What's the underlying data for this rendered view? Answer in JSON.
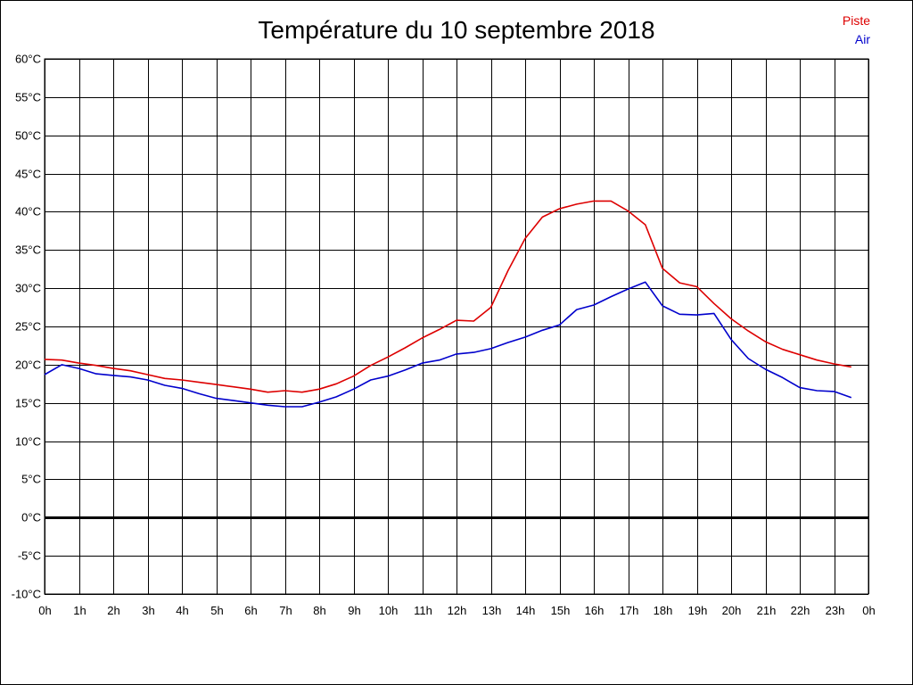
{
  "chart_data": {
    "type": "line",
    "title": "Température du 10 septembre 2018",
    "xlabel": "",
    "ylabel": "",
    "ylim": [
      -10,
      60
    ],
    "xlim": [
      0,
      24
    ],
    "grid": true,
    "legend_position": "top-right",
    "y_ticks": [
      "60°C",
      "55°C",
      "50°C",
      "45°C",
      "40°C",
      "35°C",
      "30°C",
      "25°C",
      "20°C",
      "15°C",
      "10°C",
      "5°C",
      "0°C",
      "-5°C",
      "-10°C"
    ],
    "x_ticks": [
      "0h",
      "1h",
      "2h",
      "3h",
      "4h",
      "5h",
      "6h",
      "7h",
      "8h",
      "9h",
      "10h",
      "11h",
      "12h",
      "13h",
      "14h",
      "15h",
      "16h",
      "17h",
      "18h",
      "19h",
      "20h",
      "21h",
      "22h",
      "23h",
      "0h"
    ],
    "x": [
      0,
      0.5,
      1,
      1.5,
      2,
      2.5,
      3,
      3.5,
      4,
      4.5,
      5,
      5.5,
      6,
      6.5,
      7,
      7.5,
      8,
      8.5,
      9,
      9.5,
      10,
      10.5,
      11,
      11.5,
      12,
      12.5,
      13,
      13.5,
      14,
      14.5,
      15,
      15.5,
      16,
      16.5,
      17,
      17.5,
      18,
      18.5,
      19,
      19.5,
      20,
      20.5,
      21,
      21.5,
      22,
      22.5,
      23,
      23.5
    ],
    "series": [
      {
        "name": "Piste",
        "color": "#dd0000",
        "values": [
          20.7,
          20.6,
          20.2,
          19.9,
          19.5,
          19.2,
          18.7,
          18.2,
          18.0,
          17.7,
          17.4,
          17.1,
          16.8,
          16.4,
          16.6,
          16.4,
          16.8,
          17.5,
          18.5,
          19.9,
          21.0,
          22.2,
          23.5,
          24.6,
          25.8,
          25.7,
          27.5,
          32.3,
          36.5,
          39.3,
          40.4,
          41.0,
          41.4,
          41.4,
          40.1,
          38.3,
          32.6,
          30.7,
          30.2,
          28.0,
          26.0,
          24.4,
          23.0,
          22.0,
          21.3,
          20.6,
          20.1,
          19.7
        ]
      },
      {
        "name": "Air",
        "color": "#0000cc",
        "values": [
          18.7,
          20.0,
          19.5,
          18.8,
          18.6,
          18.4,
          18.0,
          17.3,
          16.9,
          16.2,
          15.6,
          15.3,
          15.0,
          14.7,
          14.5,
          14.5,
          15.1,
          15.8,
          16.8,
          18.0,
          18.5,
          19.3,
          20.2,
          20.6,
          21.4,
          21.6,
          22.1,
          22.9,
          23.6,
          24.5,
          25.2,
          27.2,
          27.8,
          28.9,
          29.9,
          30.8,
          27.7,
          26.6,
          26.5,
          26.7,
          23.3,
          20.8,
          19.4,
          18.3,
          17.0,
          16.6,
          16.5,
          15.7
        ]
      }
    ]
  },
  "colors": {
    "grid": "#000000",
    "zero_line": "#000000",
    "background": "#ffffff"
  }
}
